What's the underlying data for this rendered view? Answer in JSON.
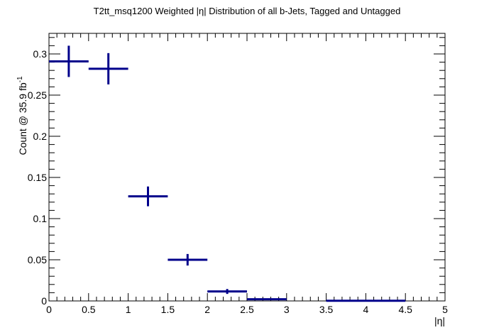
{
  "chart_data": {
    "type": "scatter",
    "title": "T2tt_msq1200 Weighted |η| Distribution of all b-Jets, Tagged and Untagged",
    "xlabel": "|η|",
    "ylabel": "Count @ 35.9 fb",
    "ylabel_sup": "-1",
    "xlim": [
      0,
      5
    ],
    "ylim": [
      0,
      0.325
    ],
    "x_ticks": [
      0,
      0.5,
      1,
      1.5,
      2,
      2.5,
      3,
      3.5,
      4,
      4.5,
      5
    ],
    "x_tick_labels": [
      "0",
      "0.5",
      "1",
      "1.5",
      "2",
      "2.5",
      "3",
      "3.5",
      "4",
      "4.5",
      "5"
    ],
    "y_ticks": [
      0,
      0.05,
      0.1,
      0.15,
      0.2,
      0.25,
      0.3
    ],
    "y_tick_labels": [
      "0",
      "0.05",
      "0.1",
      "0.15",
      "0.2",
      "0.25",
      "0.3"
    ],
    "grid": false,
    "color": "#00008b",
    "series": [
      {
        "points": [
          {
            "x": 0.25,
            "xerr": 0.25,
            "y": 0.291,
            "yerr": 0.019
          },
          {
            "x": 0.75,
            "xerr": 0.25,
            "y": 0.282,
            "yerr": 0.019
          },
          {
            "x": 1.25,
            "xerr": 0.25,
            "y": 0.127,
            "yerr": 0.012
          },
          {
            "x": 1.75,
            "xerr": 0.25,
            "y": 0.05,
            "yerr": 0.007
          },
          {
            "x": 2.25,
            "xerr": 0.25,
            "y": 0.0115,
            "yerr": 0.003
          },
          {
            "x": 2.75,
            "xerr": 0.25,
            "y": 0.002,
            "yerr": 0.001
          },
          {
            "x": 3.75,
            "xerr": 0.25,
            "y": 0.0002,
            "yerr": 0.0002
          },
          {
            "x": 4.25,
            "xerr": 0.25,
            "y": 0.0002,
            "yerr": 0.0002
          }
        ]
      }
    ]
  }
}
